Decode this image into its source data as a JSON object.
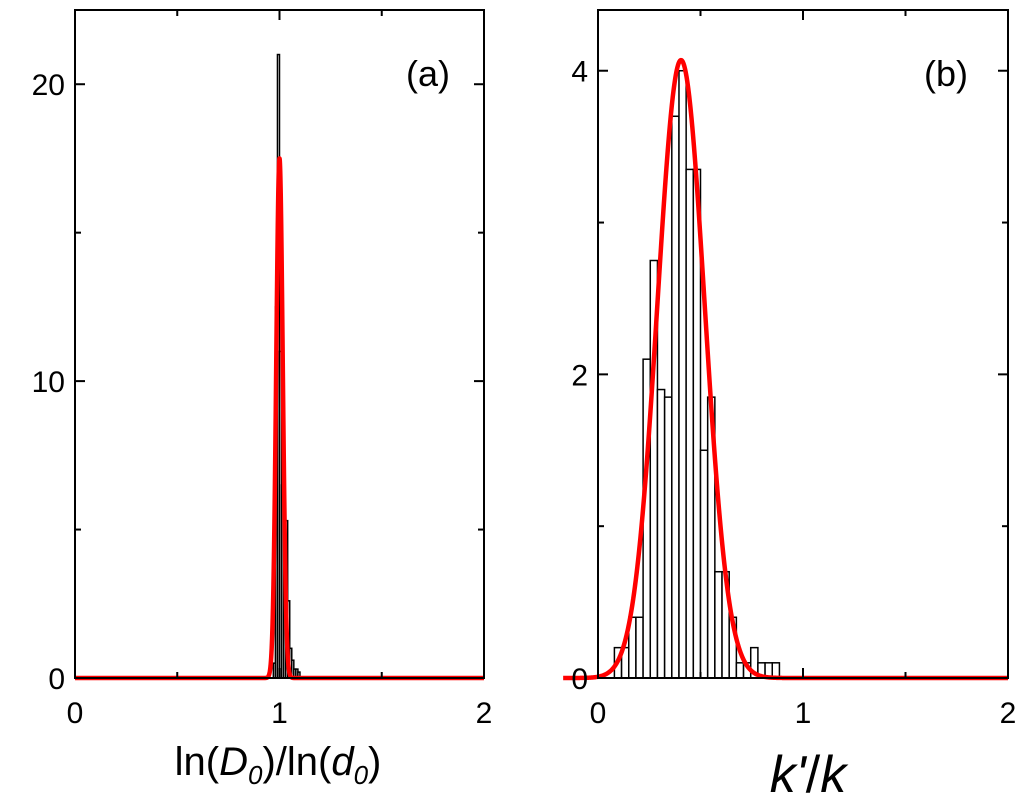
{
  "chart_data": [
    {
      "type": "bar",
      "panel_label": "(a)",
      "xlabel": {
        "pre": "ln(",
        "v1": "D",
        "s1": "0",
        "mid": ")/ln(",
        "v2": "d",
        "s2": "0",
        "post": ")"
      },
      "ylabel": "",
      "xlim": [
        0,
        2
      ],
      "ylim": [
        0,
        22.5
      ],
      "xticks": [
        0,
        1,
        2
      ],
      "xtick_labels": [
        "0",
        "1",
        "2"
      ],
      "yticks": [
        0,
        10,
        20
      ],
      "ytick_labels": [
        "0",
        "10",
        "20"
      ],
      "bin_width": 0.01,
      "histogram": {
        "bin_starts": [
          0.97,
          0.98,
          0.99,
          1.0,
          1.01,
          1.02,
          1.03,
          1.04,
          1.05,
          1.06,
          1.07,
          1.08,
          1.09
        ],
        "values": [
          0.5,
          12.5,
          21.0,
          11.0,
          6.5,
          5.0,
          5.3,
          2.6,
          1.0,
          0.6,
          0.3,
          0.3,
          0.2
        ]
      },
      "fit": {
        "curve": "gaussian",
        "color": "#ff0000",
        "center": 1.0,
        "peak": 17.5,
        "sigma": 0.016
      }
    },
    {
      "type": "bar",
      "panel_label": "(b)",
      "xlabel": {
        "pre": "",
        "v1": "k'",
        "s1": "",
        "mid": "/",
        "v2": "k",
        "s2": "",
        "post": ""
      },
      "ylabel": "",
      "xlim": [
        0,
        2
      ],
      "ylim": [
        0,
        4.4
      ],
      "xticks": [
        0,
        1,
        2
      ],
      "xtick_labels": [
        "0",
        "1",
        "2"
      ],
      "yticks": [
        0,
        2,
        4
      ],
      "ytick_labels": [
        "0",
        "2",
        "4"
      ],
      "bin_width": 0.035,
      "histogram": {
        "bin_starts": [
          0.08,
          0.115,
          0.15,
          0.185,
          0.22,
          0.255,
          0.29,
          0.325,
          0.36,
          0.395,
          0.43,
          0.465,
          0.5,
          0.535,
          0.57,
          0.605,
          0.64,
          0.675,
          0.71,
          0.745,
          0.78,
          0.815,
          0.85
        ],
        "values": [
          0.2,
          0.2,
          0.4,
          0.4,
          2.1,
          2.75,
          1.9,
          1.85,
          3.7,
          4.0,
          3.35,
          3.35,
          1.5,
          1.85,
          0.7,
          0.7,
          0.4,
          0.1,
          0.1,
          0.2,
          0.1,
          0.1,
          0.1
        ]
      },
      "fit": {
        "curve": "gaussian",
        "color": "#ff0000",
        "center": 0.405,
        "peak": 4.07,
        "sigma": 0.115
      }
    }
  ]
}
